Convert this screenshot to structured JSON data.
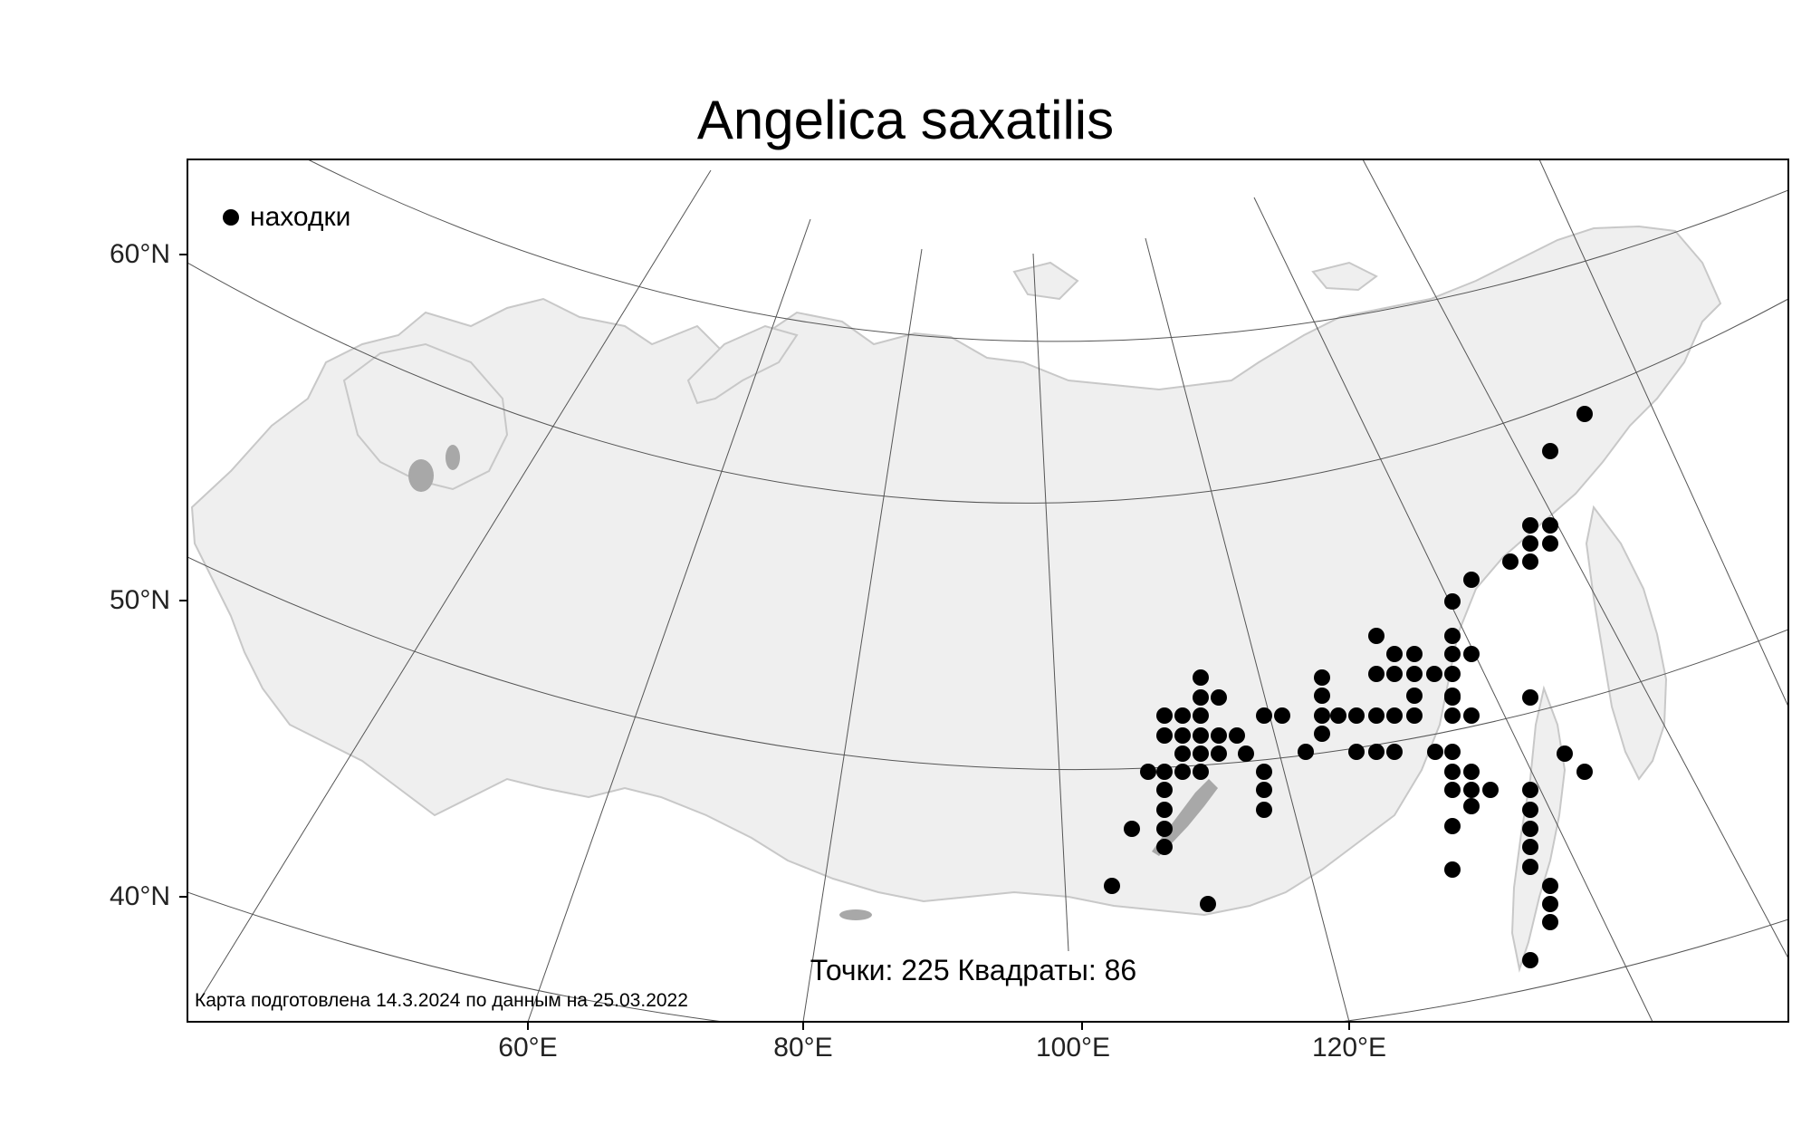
{
  "title": "Angelica saxatilis",
  "legend": {
    "label": "находки",
    "marker_color": "#000000"
  },
  "stats": "Точки: 225 Квадраты: 86",
  "credit": "Карта подготовлена 14.3.2024 по данным на 25.03.2022",
  "lat_labels": [
    "60°N",
    "50°N",
    "40°N"
  ],
  "lon_labels": [
    "60°E",
    "80°E",
    "100°E",
    "120°E"
  ],
  "colors": {
    "land": "#efefef",
    "land_outline": "#cccccc",
    "graticule": "#555555",
    "frame": "#000000",
    "point": "#000000"
  },
  "occurrence_points_count_drawn": 86
}
